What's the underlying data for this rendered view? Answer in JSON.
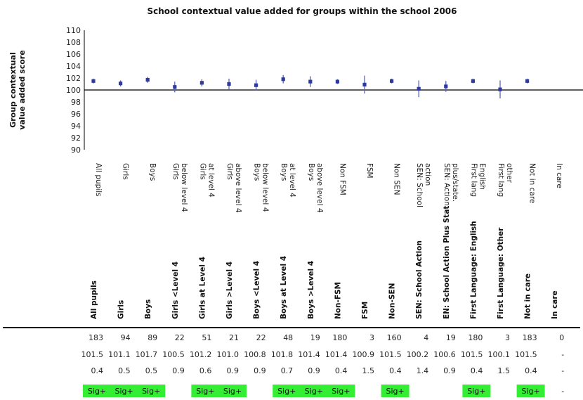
{
  "chart_data": {
    "type": "scatter",
    "title": "School contextual value added for groups within the school 2006",
    "ylabel_lines": [
      "Group contextual",
      "value added score"
    ],
    "ylim": [
      90,
      110
    ],
    "yticks": [
      90,
      92,
      94,
      96,
      98,
      100,
      102,
      104,
      106,
      108,
      110
    ],
    "baseline": 100,
    "categories": [
      [
        "All pupils"
      ],
      [
        "Girls"
      ],
      [
        "Boys"
      ],
      [
        "Girls",
        "below level 4"
      ],
      [
        "Girls",
        "at level 4"
      ],
      [
        "Girls",
        "above level 4"
      ],
      [
        "Boys",
        "below level 4"
      ],
      [
        "Boys",
        "at level 4"
      ],
      [
        "Boys",
        "above level 4"
      ],
      [
        "Non FSM"
      ],
      [
        "FSM"
      ],
      [
        "Non SEN"
      ],
      [
        "SEN: School",
        "action"
      ],
      [
        "SEN: Action",
        "plus/state."
      ],
      [
        "First lang",
        "English"
      ],
      [
        "First lang",
        "other"
      ],
      [
        "Not in care"
      ],
      [
        "In care"
      ]
    ],
    "series": [
      {
        "values": [
          101.5,
          101.1,
          101.7,
          100.5,
          101.2,
          101.0,
          100.8,
          101.8,
          101.4,
          101.4,
          100.9,
          101.5,
          100.2,
          100.6,
          101.5,
          100.1,
          101.5,
          null
        ],
        "error": [
          0.4,
          0.5,
          0.5,
          0.9,
          0.6,
          0.9,
          0.9,
          0.7,
          0.9,
          0.4,
          1.5,
          0.4,
          1.4,
          0.9,
          0.4,
          1.5,
          0.4,
          null
        ]
      }
    ],
    "colors": {
      "point": "#2e3a9e",
      "errorbar": "#5a63b5",
      "sig": "#33ee33",
      "axis": "#000000"
    }
  },
  "table": {
    "headers": [
      [
        "All pupils"
      ],
      [
        "Girls"
      ],
      [
        "Boys"
      ],
      [
        "Girls  <Level 4"
      ],
      [
        "Girls at Level 4"
      ],
      [
        "Girls  >Level 4"
      ],
      [
        "Boys  <Level 4"
      ],
      [
        "Boys at Level 4"
      ],
      [
        "Boys  >Level 4"
      ],
      [
        "Non-FSM"
      ],
      [
        "FSM"
      ],
      [
        "Non-SEN"
      ],
      [
        "SEN: School Action"
      ],
      [
        "EN: School Action Plus Stat"
      ],
      [
        "First Language: English"
      ],
      [
        "First Language: Other"
      ],
      [
        "Not in care"
      ],
      [
        "In care"
      ]
    ],
    "counts": [
      "183",
      "94",
      "89",
      "22",
      "51",
      "21",
      "22",
      "48",
      "19",
      "180",
      "3",
      "160",
      "4",
      "19",
      "180",
      "3",
      "183",
      "0"
    ],
    "scores": [
      "101.5",
      "101.1",
      "101.7",
      "100.5",
      "101.2",
      "101.0",
      "100.8",
      "101.8",
      "101.4",
      "101.4",
      "100.9",
      "101.5",
      "100.2",
      "100.6",
      "101.5",
      "100.1",
      "101.5",
      "-"
    ],
    "errors": [
      "0.4",
      "0.5",
      "0.5",
      "0.9",
      "0.6",
      "0.9",
      "0.9",
      "0.7",
      "0.9",
      "0.4",
      "1.5",
      "0.4",
      "1.4",
      "0.9",
      "0.4",
      "1.5",
      "0.4",
      "-"
    ],
    "significance": [
      "Sig+",
      "Sig+",
      "Sig+",
      "",
      "Sig+",
      "Sig+",
      "",
      "Sig+",
      "Sig+",
      "Sig+",
      "",
      "Sig+",
      "",
      "",
      "Sig+",
      "",
      "Sig+",
      "-"
    ]
  }
}
